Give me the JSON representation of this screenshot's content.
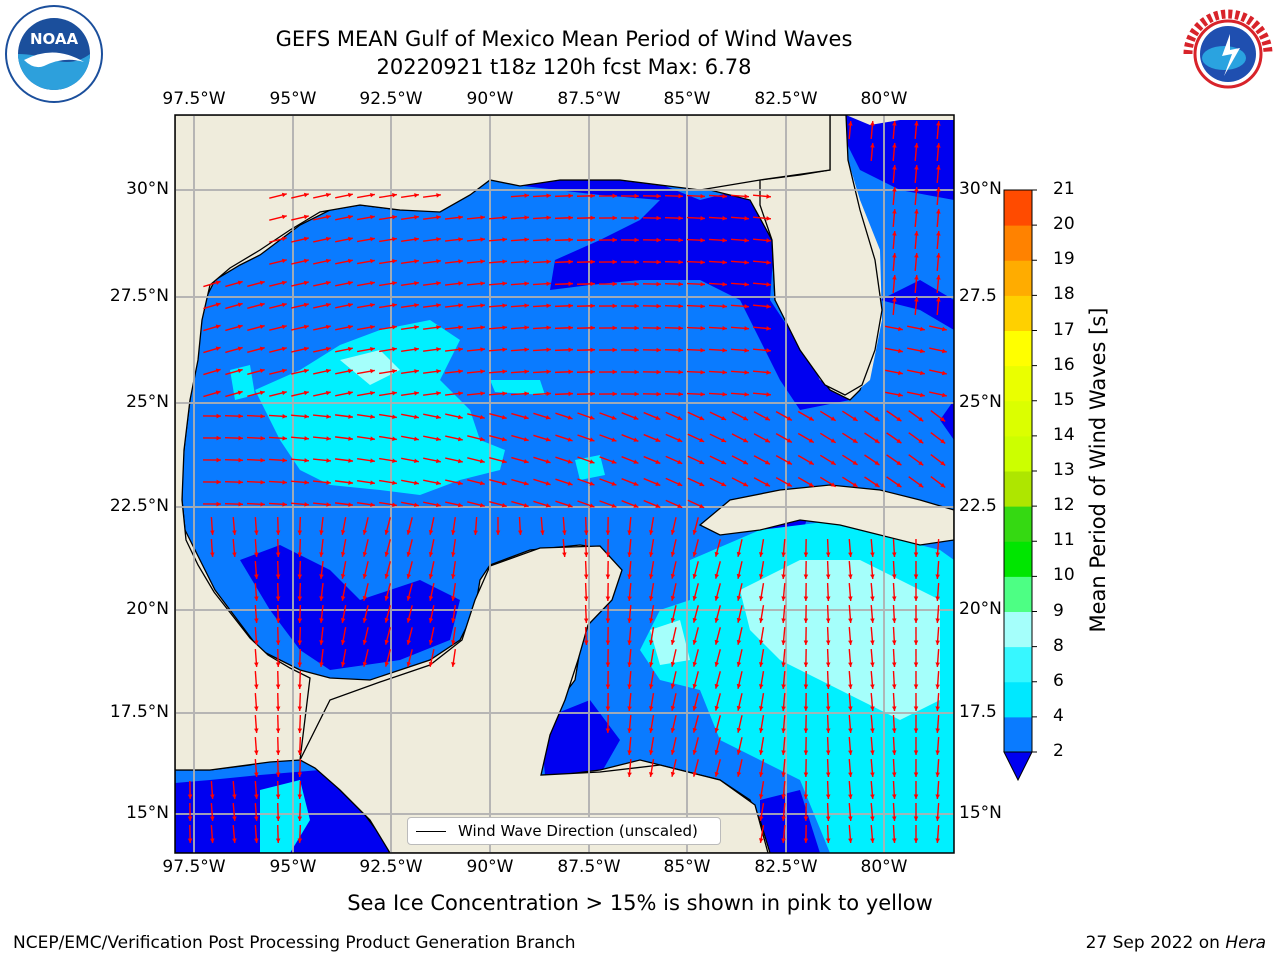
{
  "title": {
    "line1": "GEFS MEAN Gulf of Mexico Mean Period of Wind Waves",
    "line2": "20220921 t18z 120h fcst   Max: 6.78"
  },
  "longitude_ticks": [
    "97.5°W",
    "95°W",
    "92.5°W",
    "90°W",
    "87.5°W",
    "85°W",
    "82.5°W",
    "80°W"
  ],
  "latitude_ticks_left": [
    "30°N",
    "27.5°N",
    "25°N",
    "22.5°N",
    "20°N",
    "17.5°N",
    "15°N"
  ],
  "latitude_ticks_right": [
    "30°N",
    "27.5",
    "25°N",
    "22.5",
    "20°N",
    "17.5",
    "15°N"
  ],
  "colorbar": {
    "label": "Mean Period of Wind Waves [s]",
    "ticks": [
      "2",
      "4",
      "6",
      "8",
      "9",
      "10",
      "11",
      "12",
      "13",
      "14",
      "15",
      "16",
      "17",
      "18",
      "19",
      "20",
      "21"
    ],
    "colors": [
      "#0a7bff",
      "#00e8ff",
      "#37f7ff",
      "#a5fffb",
      "#4dff84",
      "#00e600",
      "#35d912",
      "#aee600",
      "#ccff00",
      "#dbff00",
      "#eaff00",
      "#ffff00",
      "#ffd000",
      "#ffac00",
      "#ff8200",
      "#ff4b00",
      "#ff1500"
    ],
    "underflow_color": "#0000f0"
  },
  "legend": {
    "label": "Wind Wave Direction (unscaled)"
  },
  "subtitle": "Sea Ice Concentration > 15% is shown in pink to yellow",
  "footer": {
    "left": "NCEP/EMC/Verification Post Processing Product Generation Branch",
    "right_prefix": "27 Sep 2022 on ",
    "right_machine": "Hera"
  },
  "colors": {
    "land": "#efecdc",
    "water_low": "#0a7bff",
    "water_deep": "#0000f0",
    "water_mid": "#00f0ff",
    "water_high": "#a5fffb",
    "arrow": "#ff0000",
    "grid": "#b0b0b0"
  }
}
